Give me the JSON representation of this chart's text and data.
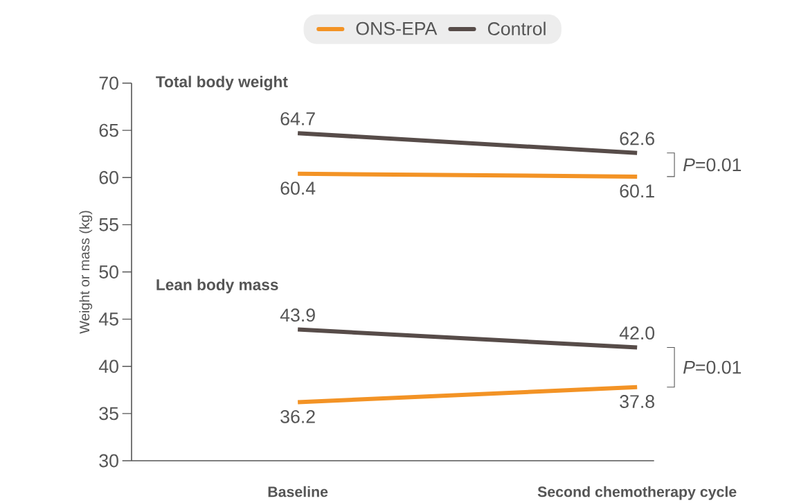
{
  "chart_data": {
    "type": "line",
    "ylabel": "Weight or mass (kg)",
    "categories": [
      "Baseline",
      "Second chemotherapy cycle"
    ],
    "series": [
      {
        "name": "ONS-EPA",
        "color": "#f39325",
        "values": [
          60.4,
          60.1
        ],
        "value_labels": [
          "60.4",
          "60.1"
        ]
      },
      {
        "name": "Control",
        "color": "#574c49",
        "values": [
          64.7,
          62.6
        ],
        "value_labels": [
          "64.7",
          "62.6"
        ]
      },
      {
        "color": "#f39325",
        "values": [
          36.2,
          37.8
        ],
        "value_labels": [
          "36.2",
          "37.8"
        ]
      },
      {
        "color": "#574c49",
        "values": [
          43.9,
          42.0
        ],
        "value_labels": [
          "43.9",
          "42.0"
        ]
      }
    ],
    "ylim": [
      30,
      70
    ],
    "yticks": [
      30,
      35,
      40,
      45,
      50,
      55,
      60,
      65,
      70
    ],
    "legend": "top",
    "annotations": [
      "Total body weight",
      "Lean body mass",
      "*P*=0.01",
      "*P*=0.01"
    ]
  }
}
